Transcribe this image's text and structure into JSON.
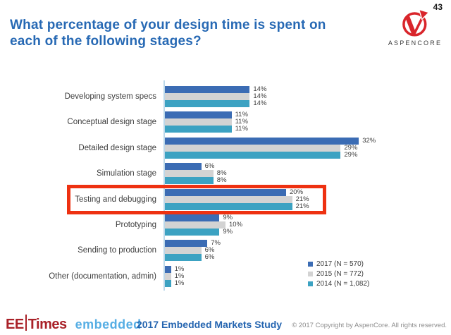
{
  "page": {
    "number": "43"
  },
  "header": {
    "title": "What percentage of your design time is spent on each of the following stages?",
    "title_color": "#2769b4",
    "logo_brand": "ASPENCORE",
    "logo_color": "#d9252b"
  },
  "chart_data": {
    "type": "bar",
    "orientation": "horizontal",
    "categories": [
      "Developing system specs",
      "Conceptual design stage",
      "Detailed design stage",
      "Simulation stage",
      "Testing and debugging",
      "Prototyping",
      "Sending to production",
      "Other (documentation, admin)"
    ],
    "series": [
      {
        "name": "2017 (N = 570)",
        "color": "#3b6cb4",
        "values": [
          14,
          11,
          32,
          6,
          20,
          9,
          7,
          1
        ]
      },
      {
        "name": "2015 (N = 772)",
        "color": "#d3d3d3",
        "values": [
          14,
          11,
          29,
          8,
          21,
          10,
          6,
          1
        ]
      },
      {
        "name": "2014 (N = 1,082)",
        "color": "#3ca2c2",
        "values": [
          14,
          11,
          29,
          8,
          21,
          9,
          6,
          1
        ]
      }
    ],
    "value_suffix": "%",
    "xlim": [
      0,
      35
    ],
    "grid": false,
    "legend_position": "bottom-right",
    "highlight": {
      "category": "Testing and debugging",
      "color": "#ee3111"
    }
  },
  "footer": {
    "eetimes_ee": "EE",
    "eetimes_times": "Times",
    "eetimes_color": "#a92128",
    "embedded": "embedded",
    "embedded_color": "#56aee4",
    "study": "2017 Embedded Markets Study",
    "copyright": "© 2017 Copyright by AspenCore. All rights reserved."
  }
}
